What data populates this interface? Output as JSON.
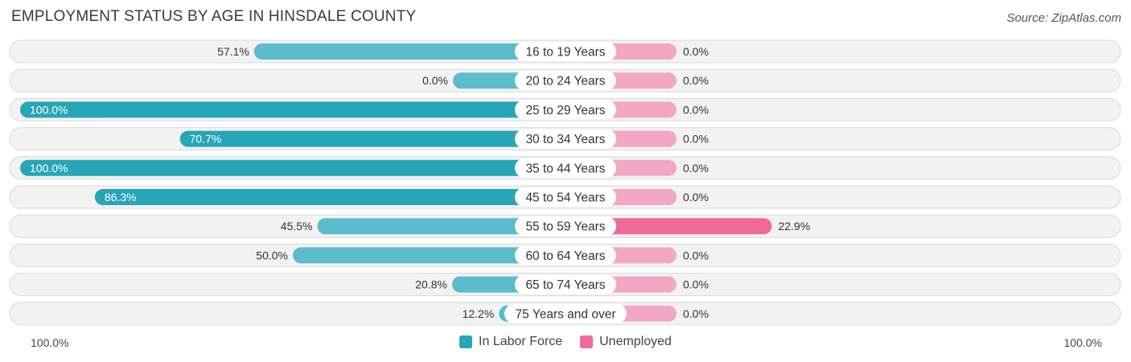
{
  "title": "EMPLOYMENT STATUS BY AGE IN HINSDALE COUNTY",
  "source": "Source: ZipAtlas.com",
  "colors": {
    "labor_force": "#5bbccb",
    "labor_force_full": "#26a6b7",
    "unemployed": "#f2a7c3",
    "unemployed_strong": "#f06a98"
  },
  "chart_data": {
    "type": "bar",
    "orientation": "diverging-horizontal",
    "title": "EMPLOYMENT STATUS BY AGE IN HINSDALE COUNTY",
    "categories": [
      "16 to 19 Years",
      "20 to 24 Years",
      "25 to 29 Years",
      "30 to 34 Years",
      "35 to 44 Years",
      "45 to 54 Years",
      "55 to 59 Years",
      "60 to 64 Years",
      "65 to 74 Years",
      "75 Years and over"
    ],
    "series": [
      {
        "name": "In Labor Force",
        "values": [
          57.1,
          0.0,
          100.0,
          70.7,
          100.0,
          86.3,
          45.5,
          50.0,
          20.8,
          12.2
        ],
        "labels": [
          "57.1%",
          "0.0%",
          "100.0%",
          "70.7%",
          "100.0%",
          "86.3%",
          "45.5%",
          "50.0%",
          "20.8%",
          "12.2%"
        ]
      },
      {
        "name": "Unemployed",
        "values": [
          0.0,
          0.0,
          0.0,
          0.0,
          0.0,
          0.0,
          22.9,
          0.0,
          0.0,
          0.0
        ],
        "labels": [
          "0.0%",
          "0.0%",
          "0.0%",
          "0.0%",
          "0.0%",
          "0.0%",
          "22.9%",
          "0.0%",
          "0.0%",
          "0.0%"
        ]
      }
    ],
    "xlim": [
      -100,
      100
    ],
    "axis_labels": {
      "left": "100.0%",
      "right": "100.0%"
    },
    "legend": [
      "In Labor Force",
      "Unemployed"
    ],
    "legend_position": "bottom-center"
  }
}
